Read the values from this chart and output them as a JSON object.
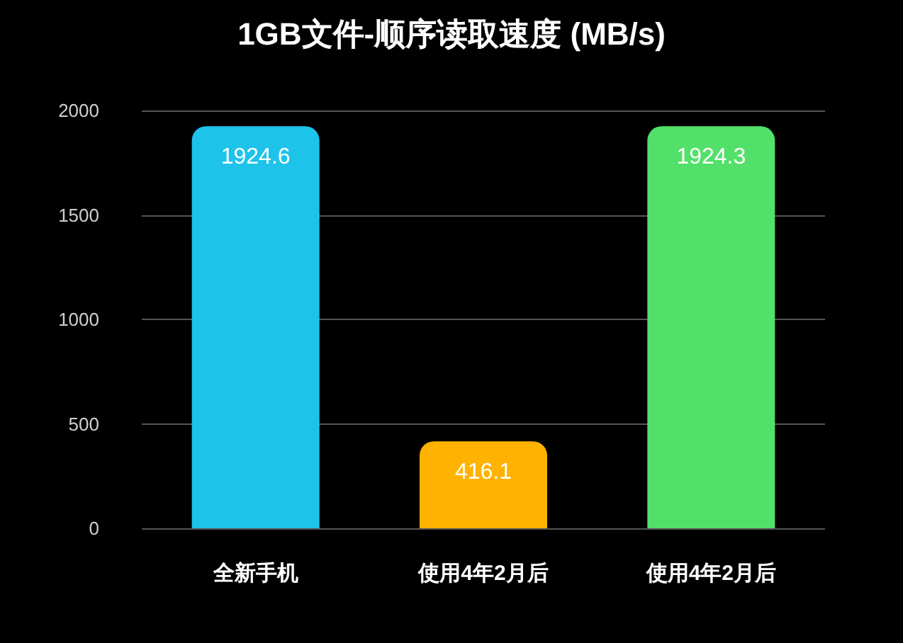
{
  "chart_data": {
    "type": "bar",
    "title": "1GB文件-顺序读取速度 (MB/s)",
    "categories": [
      "全新手机",
      "使用4年2月后",
      "使用4年2月后"
    ],
    "values": [
      1924.6,
      416.1,
      1924.3
    ],
    "colors": [
      "#1ec3ea",
      "#ffb300",
      "#52e06a"
    ],
    "ylim": [
      0,
      2000
    ],
    "yticks": [
      0,
      500,
      1000,
      1500,
      2000
    ],
    "grid": "y",
    "data_labels": true
  }
}
